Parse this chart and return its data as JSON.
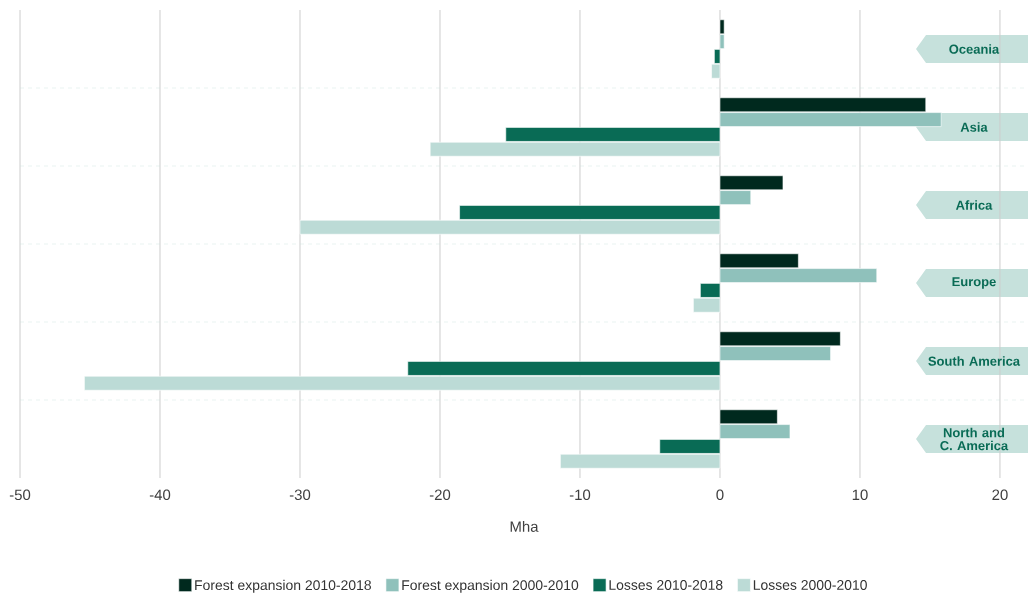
{
  "chart_data": {
    "type": "bar",
    "orientation": "horizontal",
    "xlabel": "Mha",
    "categories": [
      "Oceania",
      "Asia",
      "Africa",
      "Europe",
      "South America",
      "North and C. America"
    ],
    "series": [
      {
        "name": "Forest expansion 2010-2018",
        "color": "#00291e",
        "values": [
          0.3,
          14.7,
          4.5,
          5.6,
          8.6,
          4.1
        ]
      },
      {
        "name": "Forest expansion 2000-2010",
        "color": "#8fc1bb",
        "values": [
          0.3,
          15.8,
          2.2,
          11.2,
          7.9,
          5.0
        ]
      },
      {
        "name": "Losses 2010-2018",
        "color": "#096b55",
        "values": [
          -0.4,
          -15.3,
          -18.6,
          -1.4,
          -22.3,
          -4.3
        ]
      },
      {
        "name": "Losses 2000-2010",
        "color": "#bcdbd6",
        "values": [
          -0.6,
          -20.7,
          -30.0,
          -1.9,
          -45.4,
          -11.4
        ]
      }
    ],
    "xlim": [
      -50,
      22
    ],
    "xticks": [
      -50,
      -40,
      -30,
      -20,
      -10,
      0,
      10,
      20
    ],
    "grid": "x",
    "legend": "bottom"
  }
}
